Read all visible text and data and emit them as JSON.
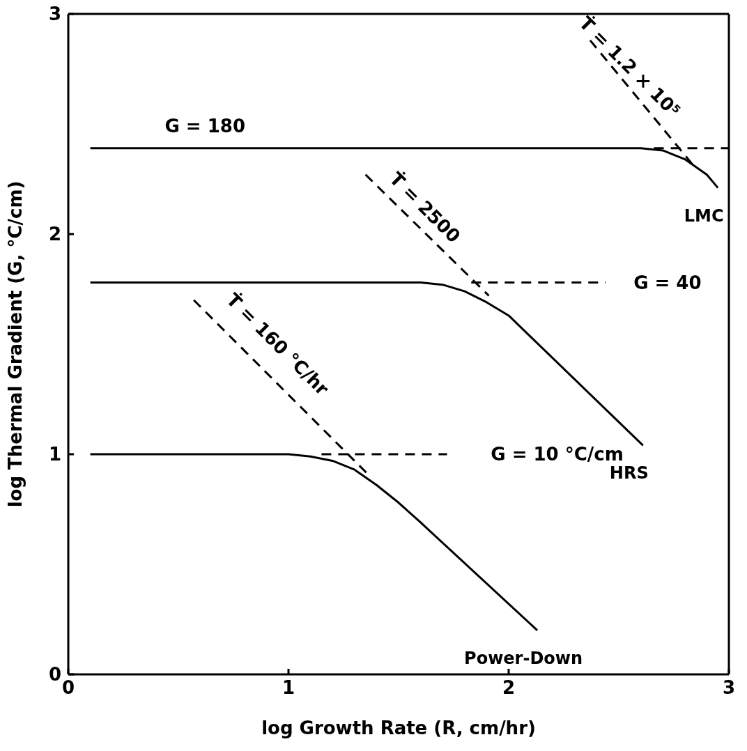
{
  "chart_data": {
    "type": "line",
    "xlabel": "log  Growth Rate (R, cm/hr)",
    "ylabel": "log  Thermal Gradient (G, °C/cm)",
    "xlim": [
      0,
      3
    ],
    "ylim": [
      0,
      3
    ],
    "xticks": [
      0,
      1,
      2,
      3
    ],
    "yticks": [
      0,
      1,
      2,
      3
    ],
    "marker": "none",
    "series": [
      {
        "name": "Power-Down",
        "color": "#000000",
        "line_style": "solid",
        "x": [
          0.1,
          1.0,
          1.1,
          1.2,
          1.3,
          1.4,
          1.5,
          1.6,
          2.13
        ],
        "values": [
          1.0,
          1.0,
          0.99,
          0.97,
          0.93,
          0.86,
          0.78,
          0.69,
          0.2
        ]
      },
      {
        "name": "HRS",
        "color": "#000000",
        "line_style": "solid",
        "x": [
          0.1,
          1.6,
          1.7,
          1.8,
          1.9,
          2.0,
          2.61
        ],
        "values": [
          1.78,
          1.78,
          1.77,
          1.74,
          1.69,
          1.63,
          1.04
        ]
      },
      {
        "name": "LMC",
        "color": "#000000",
        "line_style": "solid",
        "x": [
          0.1,
          2.6,
          2.7,
          2.8,
          2.9,
          2.95
        ],
        "values": [
          2.39,
          2.39,
          2.38,
          2.34,
          2.27,
          2.21
        ]
      },
      {
        "color": "#000000",
        "line_style": "dashed",
        "x": [
          0.57,
          1.37
        ],
        "values": [
          1.7,
          0.9
        ]
      },
      {
        "color": "#000000",
        "line_style": "dashed",
        "x": [
          1.15,
          1.72
        ],
        "values": [
          1.0,
          1.0
        ]
      },
      {
        "color": "#000000",
        "line_style": "dashed",
        "x": [
          1.35,
          1.91
        ],
        "values": [
          2.27,
          1.72
        ]
      },
      {
        "color": "#000000",
        "line_style": "dashed",
        "x": [
          1.83,
          2.44
        ],
        "values": [
          1.78,
          1.78
        ]
      },
      {
        "color": "#000000",
        "line_style": "dashed",
        "x": [
          2.37,
          2.84
        ],
        "values": [
          2.88,
          2.31
        ]
      },
      {
        "color": "#000000",
        "line_style": "dashed",
        "x": [
          2.66,
          3.0
        ],
        "values": [
          2.39,
          2.39
        ]
      }
    ],
    "annotations": [
      "G = 180",
      "G = 40",
      "G = 10 °C/cm",
      "Ṫ = 160 °C/hr",
      "Ṫ = 2500",
      "Ṫ = 1.2 × 10⁵"
    ]
  }
}
